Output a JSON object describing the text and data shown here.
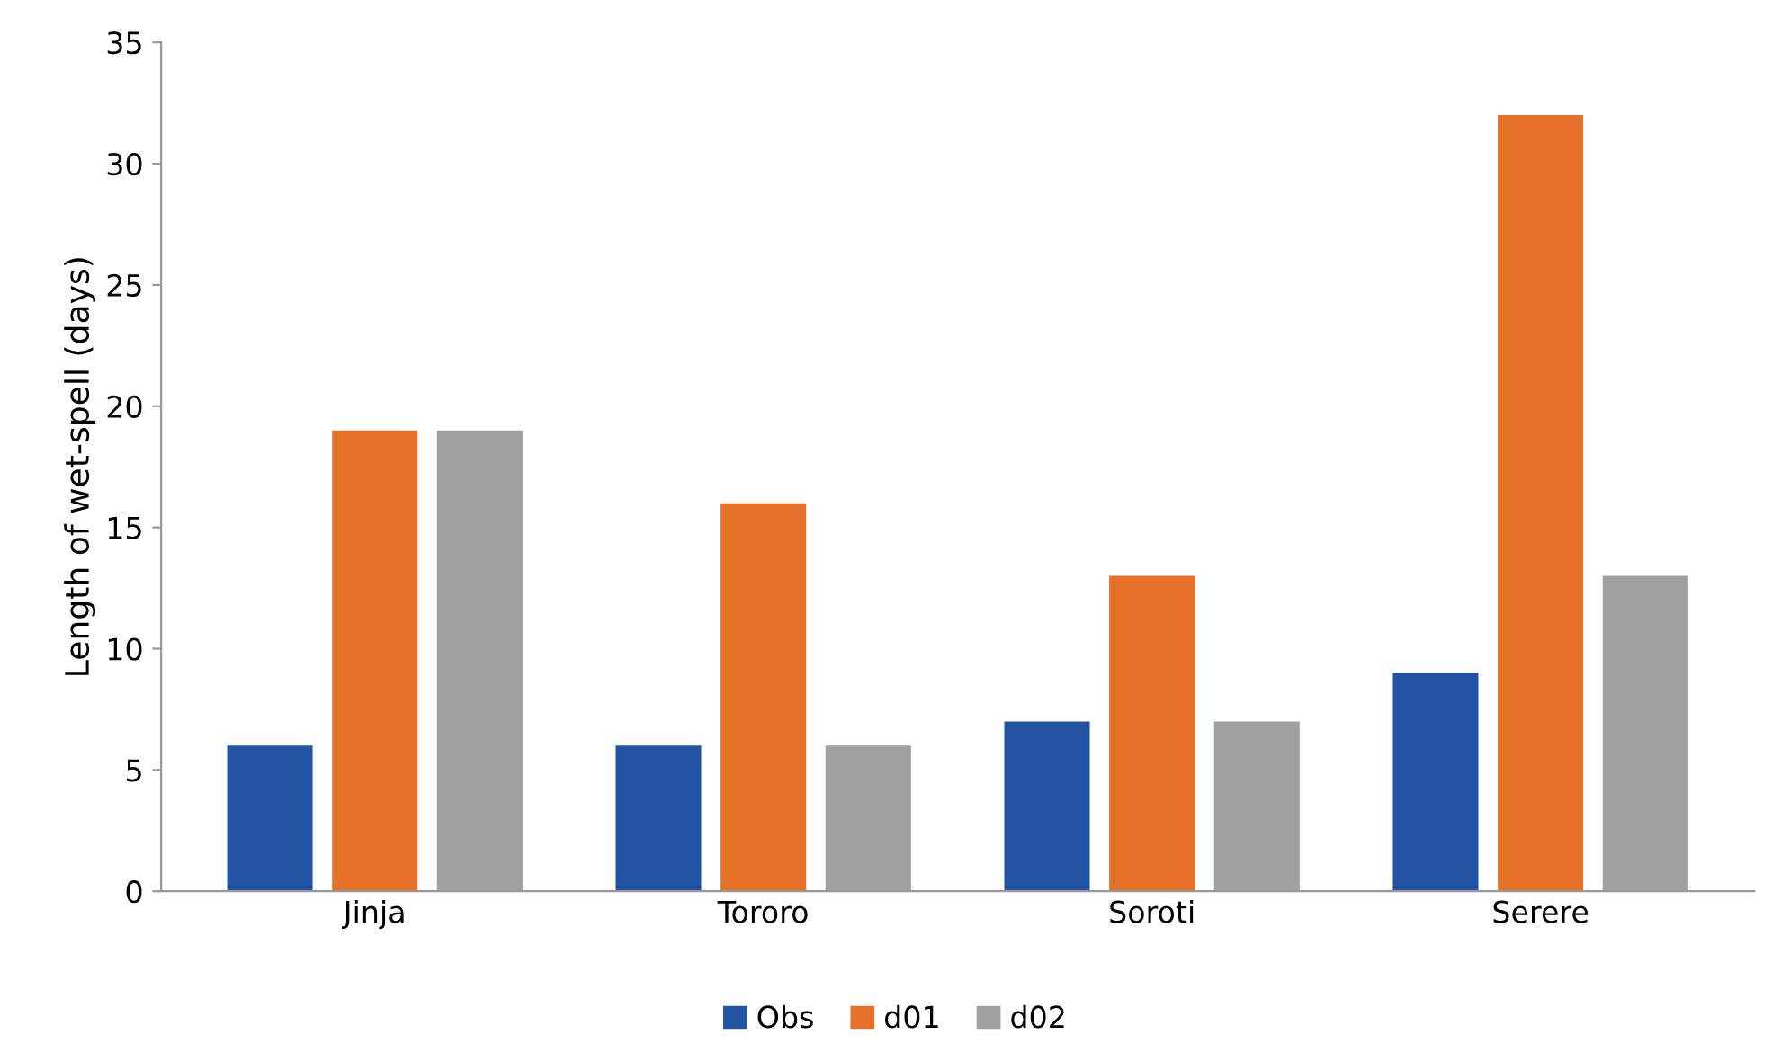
{
  "chart_data": {
    "type": "bar",
    "ylabel": "Length of wet-spell (days)",
    "categories": [
      "Jinja",
      "Tororo",
      "Soroti",
      "Serere"
    ],
    "series": [
      {
        "name": "Obs",
        "color": "#2455a4",
        "values": [
          6,
          6,
          7,
          9
        ]
      },
      {
        "name": "d01",
        "color": "#e8712a",
        "values": [
          19,
          16,
          13,
          32
        ]
      },
      {
        "name": "d02",
        "color": "#a0a0a0",
        "values": [
          19,
          6,
          7,
          13
        ]
      }
    ],
    "ylim": [
      0,
      35
    ],
    "yticks": [
      0,
      5,
      10,
      15,
      20,
      25,
      30,
      35
    ],
    "grid": false,
    "legend": "bottom"
  }
}
